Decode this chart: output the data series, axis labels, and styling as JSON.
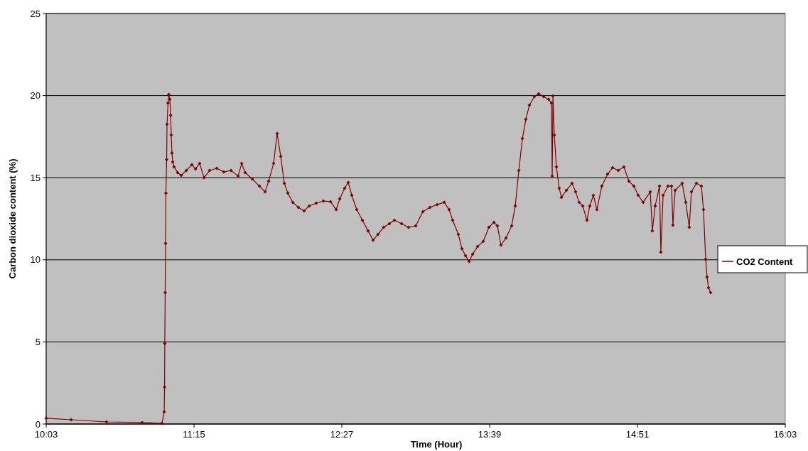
{
  "chart_data": {
    "type": "line",
    "xlabel": "Time  (Hour)",
    "ylabel": "Carbon dioxide content  (%)",
    "xlim": [
      10.05,
      16.05
    ],
    "xticks": [
      {
        "value": 10.05,
        "label": "10:03"
      },
      {
        "value": 11.25,
        "label": "11:15"
      },
      {
        "value": 12.45,
        "label": "12:27"
      },
      {
        "value": 13.65,
        "label": "13:39"
      },
      {
        "value": 14.85,
        "label": "14:51"
      },
      {
        "value": 16.05,
        "label": "16:03"
      }
    ],
    "ylim": [
      0,
      25
    ],
    "yticks": [
      0,
      5,
      10,
      15,
      20,
      25
    ],
    "grid": "y",
    "legend": "right",
    "marker": "diamond",
    "line_style": "solid",
    "series": [
      {
        "name": "CO2 Content",
        "color": "#800000",
        "x": [
          10.05,
          10.252,
          10.54,
          10.829,
          10.99,
          11.008,
          11.011,
          11.013,
          11.016,
          11.019,
          11.022,
          11.028,
          11.031,
          11.039,
          11.045,
          11.054,
          11.06,
          11.065,
          11.071,
          11.077,
          11.088,
          11.117,
          11.146,
          11.187,
          11.233,
          11.262,
          11.296,
          11.331,
          11.377,
          11.435,
          11.492,
          11.55,
          11.608,
          11.637,
          11.665,
          11.723,
          11.781,
          11.827,
          11.856,
          11.896,
          11.925,
          11.954,
          11.983,
          12.012,
          12.052,
          12.098,
          12.144,
          12.185,
          12.242,
          12.3,
          12.358,
          12.404,
          12.433,
          12.473,
          12.502,
          12.531,
          12.571,
          12.617,
          12.663,
          12.704,
          12.744,
          12.79,
          12.836,
          12.877,
          12.935,
          12.992,
          13.05,
          13.108,
          13.165,
          13.223,
          13.281,
          13.321,
          13.35,
          13.396,
          13.425,
          13.454,
          13.483,
          13.512,
          13.552,
          13.598,
          13.644,
          13.685,
          13.713,
          13.742,
          13.783,
          13.829,
          13.858,
          13.887,
          13.916,
          13.944,
          13.973,
          14.013,
          14.048,
          14.088,
          14.129,
          14.152,
          14.158,
          14.164,
          14.175,
          14.192,
          14.215,
          14.233,
          14.273,
          14.319,
          14.348,
          14.377,
          14.406,
          14.44,
          14.463,
          14.492,
          14.521,
          14.561,
          14.608,
          14.648,
          14.694,
          14.74,
          14.781,
          14.821,
          14.856,
          14.896,
          14.954,
          14.971,
          14.994,
          15.029,
          15.04,
          15.058,
          15.098,
          15.127,
          15.138,
          15.156,
          15.213,
          15.242,
          15.271,
          15.288,
          15.329,
          15.369,
          15.386,
          15.404,
          15.415,
          15.427,
          15.444
        ],
        "values": [
          0.35,
          0.26,
          0.13,
          0.09,
          0.04,
          0.74,
          2.25,
          4.9,
          8.0,
          11.0,
          14.06,
          16.1,
          18.25,
          19.55,
          20.07,
          19.77,
          18.8,
          17.6,
          16.5,
          15.96,
          15.66,
          15.31,
          15.14,
          15.44,
          15.79,
          15.53,
          15.87,
          15.0,
          15.44,
          15.57,
          15.35,
          15.44,
          15.1,
          15.87,
          15.31,
          14.92,
          14.49,
          14.14,
          14.79,
          15.87,
          17.69,
          16.3,
          14.66,
          14.06,
          13.5,
          13.19,
          12.98,
          13.28,
          13.45,
          13.58,
          13.54,
          13.06,
          13.71,
          14.36,
          14.71,
          13.93,
          13.06,
          12.41,
          11.76,
          11.2,
          11.55,
          11.98,
          12.2,
          12.41,
          12.2,
          11.98,
          12.07,
          12.93,
          13.19,
          13.36,
          13.5,
          13.06,
          12.41,
          11.55,
          10.68,
          10.25,
          9.9,
          10.34,
          10.81,
          11.12,
          11.98,
          12.28,
          12.07,
          10.9,
          11.33,
          12.07,
          13.28,
          15.44,
          17.39,
          18.56,
          19.42,
          19.94,
          20.11,
          19.94,
          19.77,
          19.55,
          15.1,
          19.98,
          17.6,
          15.66,
          14.36,
          13.8,
          14.23,
          14.66,
          14.14,
          13.5,
          13.28,
          12.41,
          13.28,
          13.93,
          13.06,
          14.49,
          15.22,
          15.61,
          15.44,
          15.66,
          14.79,
          14.49,
          13.93,
          13.5,
          14.14,
          11.76,
          13.28,
          14.49,
          10.47,
          13.93,
          14.49,
          14.49,
          12.11,
          14.23,
          14.66,
          13.5,
          11.98,
          14.14,
          14.66,
          14.49,
          13.06,
          10.03,
          8.95,
          8.3,
          8.0
        ]
      }
    ]
  }
}
